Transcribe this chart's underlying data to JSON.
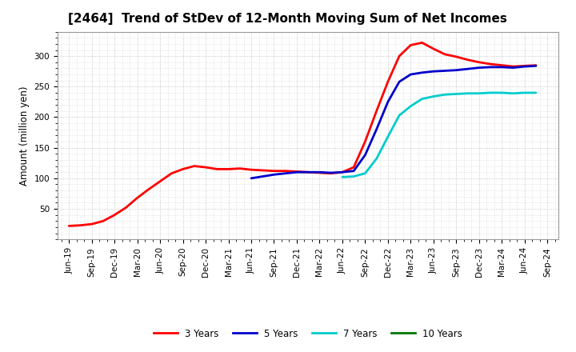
{
  "title": "[2464]  Trend of StDev of 12-Month Moving Sum of Net Incomes",
  "ylabel": "Amount (million yen)",
  "background_color": "#ffffff",
  "grid_color": "#b0b0b0",
  "ylim": [
    0,
    340
  ],
  "yticks": [
    50,
    100,
    150,
    200,
    250,
    300
  ],
  "series": {
    "3y": {
      "color": "#ff0000",
      "label": "3 Years",
      "data": [
        [
          0,
          22
        ],
        [
          1,
          23
        ],
        [
          2,
          25
        ],
        [
          3,
          30
        ],
        [
          4,
          40
        ],
        [
          5,
          52
        ],
        [
          6,
          68
        ],
        [
          7,
          82
        ],
        [
          8,
          95
        ],
        [
          9,
          108
        ],
        [
          10,
          115
        ],
        [
          11,
          120
        ],
        [
          12,
          118
        ],
        [
          13,
          115
        ],
        [
          14,
          115
        ],
        [
          15,
          116
        ],
        [
          16,
          114
        ],
        [
          17,
          113
        ],
        [
          18,
          112
        ],
        [
          19,
          112
        ],
        [
          20,
          111
        ],
        [
          21,
          110
        ],
        [
          22,
          109
        ],
        [
          23,
          108
        ],
        [
          24,
          110
        ],
        [
          25,
          118
        ],
        [
          26,
          160
        ],
        [
          27,
          210
        ],
        [
          28,
          258
        ],
        [
          29,
          300
        ],
        [
          30,
          318
        ],
        [
          31,
          322
        ],
        [
          32,
          312
        ],
        [
          33,
          303
        ],
        [
          34,
          299
        ],
        [
          35,
          294
        ],
        [
          36,
          290
        ],
        [
          37,
          287
        ],
        [
          38,
          285
        ],
        [
          39,
          283
        ],
        [
          40,
          284
        ],
        [
          41,
          285
        ]
      ]
    },
    "5y": {
      "color": "#0000cc",
      "label": "5 Years",
      "data": [
        [
          16,
          100
        ],
        [
          17,
          103
        ],
        [
          18,
          106
        ],
        [
          19,
          108
        ],
        [
          20,
          110
        ],
        [
          21,
          110
        ],
        [
          22,
          110
        ],
        [
          23,
          109
        ],
        [
          24,
          110
        ],
        [
          25,
          112
        ],
        [
          26,
          138
        ],
        [
          27,
          180
        ],
        [
          28,
          225
        ],
        [
          29,
          258
        ],
        [
          30,
          270
        ],
        [
          31,
          273
        ],
        [
          32,
          275
        ],
        [
          33,
          276
        ],
        [
          34,
          277
        ],
        [
          35,
          279
        ],
        [
          36,
          281
        ],
        [
          37,
          282
        ],
        [
          38,
          282
        ],
        [
          39,
          281
        ],
        [
          40,
          283
        ],
        [
          41,
          284
        ]
      ]
    },
    "7y": {
      "color": "#00cccc",
      "label": "7 Years",
      "data": [
        [
          24,
          102
        ],
        [
          25,
          103
        ],
        [
          26,
          108
        ],
        [
          27,
          132
        ],
        [
          28,
          168
        ],
        [
          29,
          203
        ],
        [
          30,
          218
        ],
        [
          31,
          230
        ],
        [
          32,
          234
        ],
        [
          33,
          237
        ],
        [
          34,
          238
        ],
        [
          35,
          239
        ],
        [
          36,
          239
        ],
        [
          37,
          240
        ],
        [
          38,
          240
        ],
        [
          39,
          239
        ],
        [
          40,
          240
        ],
        [
          41,
          240
        ]
      ]
    },
    "10y": {
      "color": "#007700",
      "label": "10 Years",
      "data": []
    }
  },
  "x_labels": [
    "Jun-19",
    "Sep-19",
    "Dec-19",
    "Mar-20",
    "Jun-20",
    "Sep-20",
    "Dec-20",
    "Mar-21",
    "Jun-21",
    "Sep-21",
    "Dec-21",
    "Mar-22",
    "Jun-22",
    "Sep-22",
    "Dec-22",
    "Mar-23",
    "Jun-23",
    "Sep-23",
    "Dec-23",
    "Mar-24",
    "Jun-24",
    "Sep-24"
  ],
  "title_fontsize": 11,
  "tick_fontsize": 7.5,
  "ylabel_fontsize": 8.5,
  "legend_fontsize": 8.5
}
